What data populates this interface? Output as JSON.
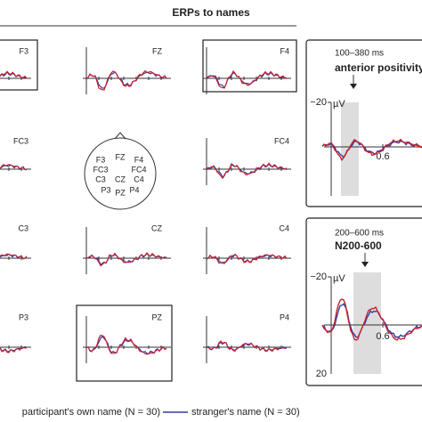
{
  "title": "ERPs to names",
  "panels": [
    {
      "label": "F3"
    },
    {
      "label": "FZ"
    },
    {
      "label": "F4"
    },
    {
      "label": "FC3"
    },
    {
      "label": "FC4"
    },
    {
      "label": "C3"
    },
    {
      "label": "CZ"
    },
    {
      "label": "C4"
    },
    {
      "label": "P3"
    },
    {
      "label": "PZ"
    },
    {
      "label": "P4"
    }
  ],
  "head_labels": [
    "F3",
    "FZ",
    "F4",
    "FC3",
    "FC4",
    "C3",
    "CZ",
    "C4",
    "P3",
    "PZ",
    "P4"
  ],
  "insets": [
    {
      "window": "100–380 ms",
      "component": "anterior positivity",
      "y_top": "−20",
      "unit": "µV",
      "x_tick": "0.6"
    },
    {
      "window": "200–600 ms",
      "component": "N200-600",
      "y_top": "−20",
      "unit": "µV",
      "x_tick": "0.6",
      "y_bottom": "20"
    }
  ],
  "legend": [
    "participant's own name (N = 30)",
    "stranger's name (N = 30)"
  ]
}
